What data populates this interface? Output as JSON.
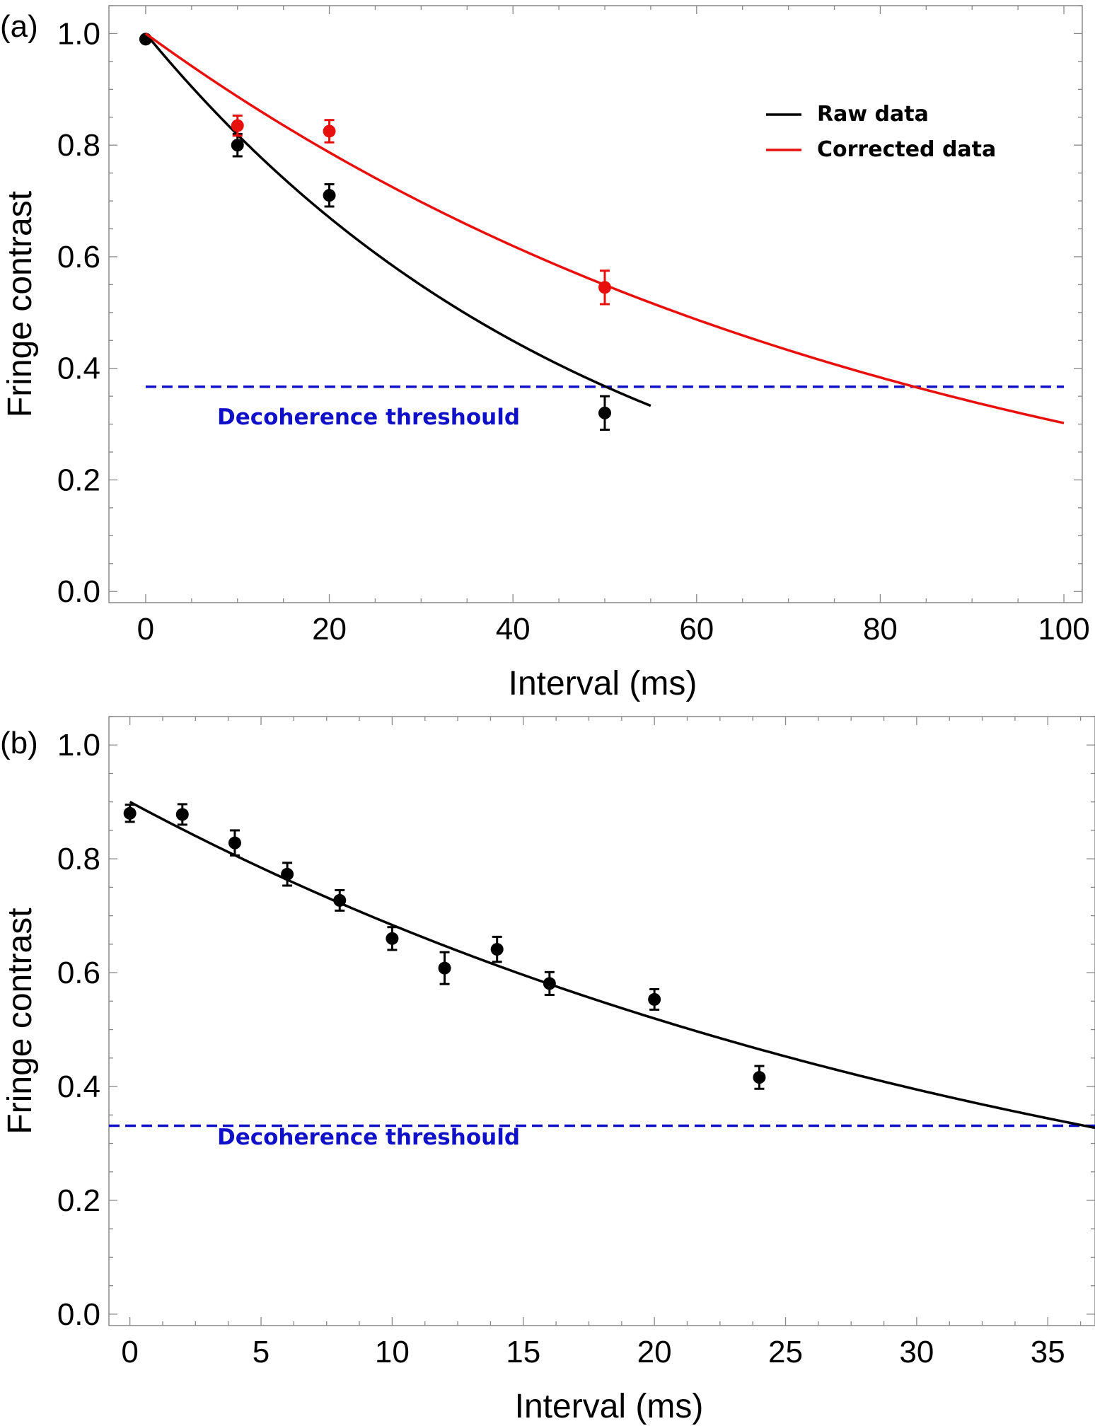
{
  "colors": {
    "raw": "#000000",
    "corrected": "#e8100c",
    "threshold": "#1010c8"
  },
  "chart_data": [
    {
      "panel": "(a)",
      "type": "scatter",
      "xlabel": "Interval (ms)",
      "ylabel": "Fringe contrast",
      "xlim": [
        -4,
        102
      ],
      "ylim": [
        -0.02,
        1.05
      ],
      "xticks": [
        0,
        20,
        40,
        60,
        80,
        100
      ],
      "yticks": [
        0.0,
        0.2,
        0.4,
        0.6,
        0.8,
        1.0
      ],
      "xtick_labels": [
        "0",
        "20",
        "40",
        "60",
        "80",
        "100"
      ],
      "ytick_labels": [
        "0.0",
        "0.2",
        "0.4",
        "0.6",
        "0.8",
        "1.0"
      ],
      "grid": false,
      "legend_position": "top-right",
      "series": [
        {
          "name": "Raw data",
          "color": "#000000",
          "points": [
            {
              "x": 0,
              "y": 0.99,
              "err": 0.0
            },
            {
              "x": 10,
              "y": 0.8,
              "err": 0.02
            },
            {
              "x": 20,
              "y": 0.71,
              "err": 0.02
            },
            {
              "x": 50,
              "y": 0.32,
              "err": 0.03
            }
          ],
          "fit": {
            "form": "exponential",
            "a": 1.0,
            "tau": 50,
            "x_range": [
              0,
              55
            ]
          }
        },
        {
          "name": "Corrected data",
          "color": "#e8100c",
          "points": [
            {
              "x": 10,
              "y": 0.835,
              "err": 0.018
            },
            {
              "x": 20,
              "y": 0.825,
              "err": 0.02
            },
            {
              "x": 50,
              "y": 0.545,
              "err": 0.03
            }
          ],
          "fit": {
            "form": "exponential",
            "a": 1.0,
            "tau": 83.5,
            "x_range": [
              0,
              100
            ]
          }
        }
      ],
      "threshold": {
        "y": 0.367,
        "x_range": [
          0,
          100
        ],
        "label": "Decoherence threshould"
      }
    },
    {
      "panel": "(b)",
      "type": "scatter",
      "xlabel": "Interval (ms)",
      "ylabel": "Fringe contrast",
      "xlim": [
        -0.8,
        36.8
      ],
      "ylim": [
        -0.02,
        1.05
      ],
      "xticks": [
        0,
        5,
        10,
        15,
        20,
        25,
        30,
        35
      ],
      "yticks": [
        0.0,
        0.2,
        0.4,
        0.6,
        0.8,
        1.0
      ],
      "xtick_labels": [
        "0",
        "5",
        "10",
        "15",
        "20",
        "25",
        "30",
        "35"
      ],
      "ytick_labels": [
        "0.0",
        "0.2",
        "0.4",
        "0.6",
        "0.8",
        "1.0"
      ],
      "grid": false,
      "series": [
        {
          "color": "#000000",
          "points": [
            {
              "x": 0,
              "y": 0.88,
              "err": 0.015
            },
            {
              "x": 2,
              "y": 0.878,
              "err": 0.018
            },
            {
              "x": 4,
              "y": 0.828,
              "err": 0.022
            },
            {
              "x": 6,
              "y": 0.773,
              "err": 0.02
            },
            {
              "x": 8,
              "y": 0.727,
              "err": 0.018
            },
            {
              "x": 10,
              "y": 0.66,
              "err": 0.02
            },
            {
              "x": 12,
              "y": 0.608,
              "err": 0.028
            },
            {
              "x": 14,
              "y": 0.641,
              "err": 0.022
            },
            {
              "x": 16,
              "y": 0.581,
              "err": 0.02
            },
            {
              "x": 20,
              "y": 0.553,
              "err": 0.018
            },
            {
              "x": 24,
              "y": 0.416,
              "err": 0.02
            }
          ],
          "fit": {
            "form": "exponential",
            "a": 0.9,
            "tau": 36.4,
            "x_range": [
              0,
              36.8
            ]
          }
        }
      ],
      "threshold": {
        "y": 0.331,
        "x_range": [
          -0.8,
          36.8
        ],
        "label": "Decoherence threshould"
      }
    }
  ]
}
